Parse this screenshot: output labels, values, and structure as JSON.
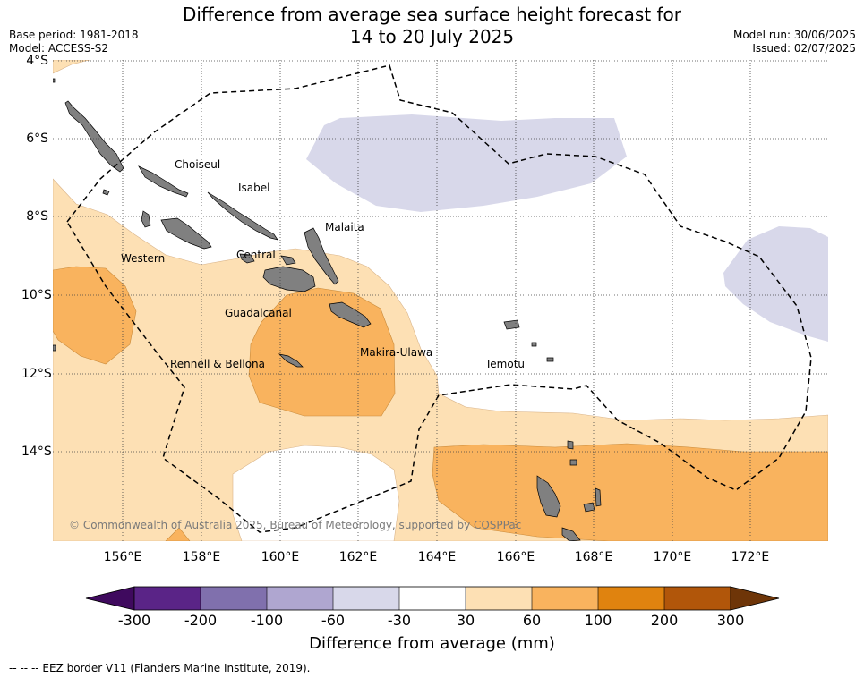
{
  "header": {
    "title_line1": "Difference from average sea surface height forecast for",
    "title_line2": "14 to 20 July 2025",
    "base_period": "Base period: 1981-2018",
    "model": "Model: ACCESS-S2",
    "model_run": "Model run: 30/06/2025",
    "issued": "Issued: 02/07/2025"
  },
  "map": {
    "lat_labels": [
      "4°S",
      "6°S",
      "8°S",
      "10°S",
      "12°S",
      "14°S"
    ],
    "lon_labels": [
      "156°E",
      "158°E",
      "160°E",
      "162°E",
      "164°E",
      "166°E",
      "168°E",
      "170°E",
      "172°E"
    ],
    "regions": [
      "Choiseul",
      "Isabel",
      "Malaita",
      "Western",
      "Central",
      "Guadalcanal",
      "Makira-Ulawa",
      "Rennell & Bellona",
      "Temotu"
    ],
    "copyright": "© Commonwealth of Australia 2025, Bureau of Meteorology, supported by COSPPac"
  },
  "colorbar": {
    "ticks": [
      "-300",
      "-200",
      "-100",
      "-60",
      "-30",
      "30",
      "60",
      "100",
      "200",
      "300"
    ],
    "colors": [
      "#3f0a5e",
      "#5a2487",
      "#8070ad",
      "#afa6d0",
      "#d8d8ea",
      "#ffffff",
      "#fde0b4",
      "#f9b35e",
      "#e0830f",
      "#b1560a",
      "#6e3508"
    ],
    "title": "Difference from average (mm)"
  },
  "legend": {
    "eez_note": "--  --  -- EEZ border V11 (Flanders Marine Institute, 2019)."
  }
}
